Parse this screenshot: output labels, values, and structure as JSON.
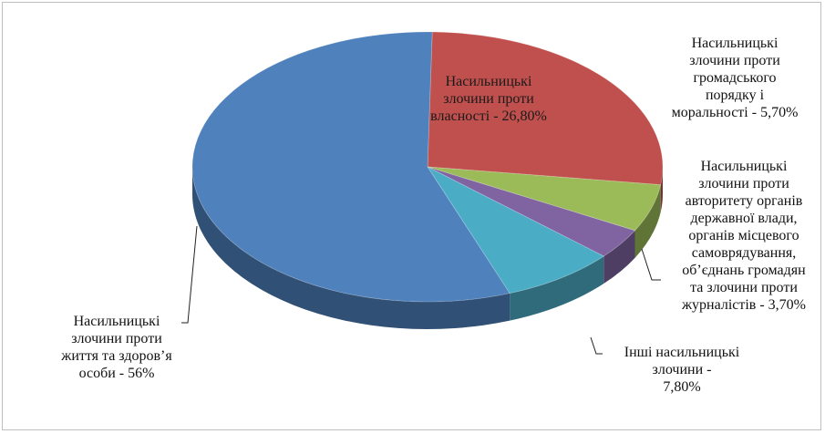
{
  "chart_data": {
    "type": "pie",
    "title": "",
    "three_d": true,
    "legend": "none",
    "slices": [
      {
        "label": "Насильницькі злочини проти власності - 26,80%",
        "value": 26.8,
        "color": "#c0504d"
      },
      {
        "label": "Насильницькі злочини проти громадського порядку і моральності - 5,70%",
        "value": 5.7,
        "color": "#9bbb59"
      },
      {
        "label": "Насильницькі злочини проти авторитету органів державної влади, органів місцевого самоврядування, об’єднань громадян та злочини проти журналістів - 3,70%",
        "value": 3.7,
        "color": "#8064a2"
      },
      {
        "label": "Інші насильницькі злочини - 7,80%",
        "value": 7.8,
        "color": "#4bacc6"
      },
      {
        "label": "Насильницькі злочини проти життя та здоров’я особи - 56%",
        "value": 56.0,
        "color": "#4f81bd"
      }
    ]
  },
  "labels": {
    "property": "Насильницькі\nзлочини проти\nвласності - 26,80%",
    "order": "Насильницькі\nзлочини проти\nгромадського\nпорядку і\nморальності - 5,70%",
    "authority": "Насильницькі\nзлочини проти\nавторитету органів\nдержавної влади,\nорганів місцевого\nсамоврядування,\nоб’єднань громадян\nта злочини проти\nжурналістів - 3,70%",
    "other": "Інші насильницькі\nзлочини -\n7,80%",
    "life": "Насильницькі\nзлочини проти\nжиття та здоров’я\nособи - 56%"
  }
}
